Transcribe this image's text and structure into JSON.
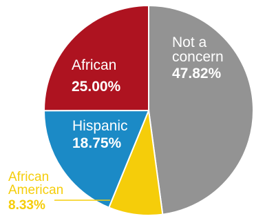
{
  "chart_data": {
    "type": "pie",
    "slices": [
      {
        "label": "Not a\nconcern",
        "value_text": "47.82%",
        "value": 47.82,
        "color": "#939393"
      },
      {
        "label": "African\nAmerican",
        "value_text": "8.33%",
        "value": 8.33,
        "color": "#f5cd0a"
      },
      {
        "label": "Hispanic",
        "value_text": "18.75%",
        "value": 18.75,
        "color": "#1b8ac6"
      },
      {
        "label": "African",
        "value_text": "25.00%",
        "value": 25.0,
        "color": "#ae1320"
      }
    ],
    "start_angle_deg": 0,
    "direction": "clockwise"
  },
  "colors": {
    "outside_label": "#f5cd0a",
    "inside_label": "#ffffff",
    "slice_border": "#ffffff"
  }
}
